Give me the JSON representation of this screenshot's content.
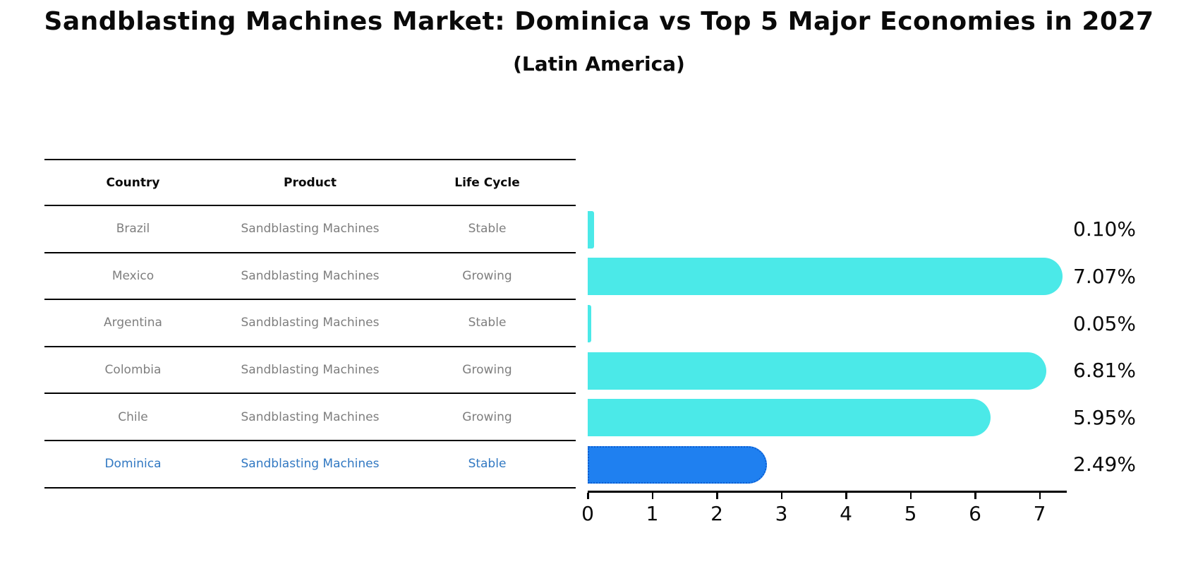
{
  "title": "Sandblasting Machines Market: Dominica vs Top 5 Major Economies in 2027",
  "subtitle": "(Latin America)",
  "table": {
    "headers": [
      "Country",
      "Product",
      "Life Cycle"
    ],
    "rows": [
      {
        "country": "Brazil",
        "product": "Sandblasting Machines",
        "life_cycle": "Stable",
        "highlight": false
      },
      {
        "country": "Mexico",
        "product": "Sandblasting Machines",
        "life_cycle": "Growing",
        "highlight": false
      },
      {
        "country": "Argentina",
        "product": "Sandblasting Machines",
        "life_cycle": "Stable",
        "highlight": false
      },
      {
        "country": "Colombia",
        "product": "Sandblasting Machines",
        "life_cycle": "Growing",
        "highlight": false
      },
      {
        "country": "Chile",
        "product": "Sandblasting Machines",
        "life_cycle": "Growing",
        "highlight": false
      },
      {
        "country": "Dominica",
        "product": "Sandblasting Machines",
        "life_cycle": "Stable",
        "highlight": true
      }
    ]
  },
  "chart_data": {
    "type": "bar",
    "orientation": "horizontal",
    "categories": [
      "Brazil",
      "Mexico",
      "Argentina",
      "Colombia",
      "Chile",
      "Dominica"
    ],
    "values": [
      0.1,
      7.07,
      0.05,
      6.81,
      5.95,
      2.49
    ],
    "value_labels": [
      "0.10%",
      "7.07%",
      "0.05%",
      "6.81%",
      "5.95%",
      "2.49%"
    ],
    "highlight_index": 5,
    "x_ticks": [
      "0",
      "1",
      "2",
      "3",
      "4",
      "5",
      "6",
      "7"
    ],
    "xlim": [
      0,
      7.42
    ],
    "grid": false,
    "legend": null,
    "title": "Sandblasting Machines Market: Dominica vs Top 5 Major Economies in 2027 (Latin America)",
    "xlabel": "",
    "ylabel": ""
  },
  "colors": {
    "bar_cyan": "#4be9e8",
    "bar_blue": "#1f80f0",
    "bar_blue_border": "#0d5ed2",
    "highlight_text": "#3178c2",
    "table_text": "#7e7e7e",
    "axis_text": "#0a0a0a"
  }
}
